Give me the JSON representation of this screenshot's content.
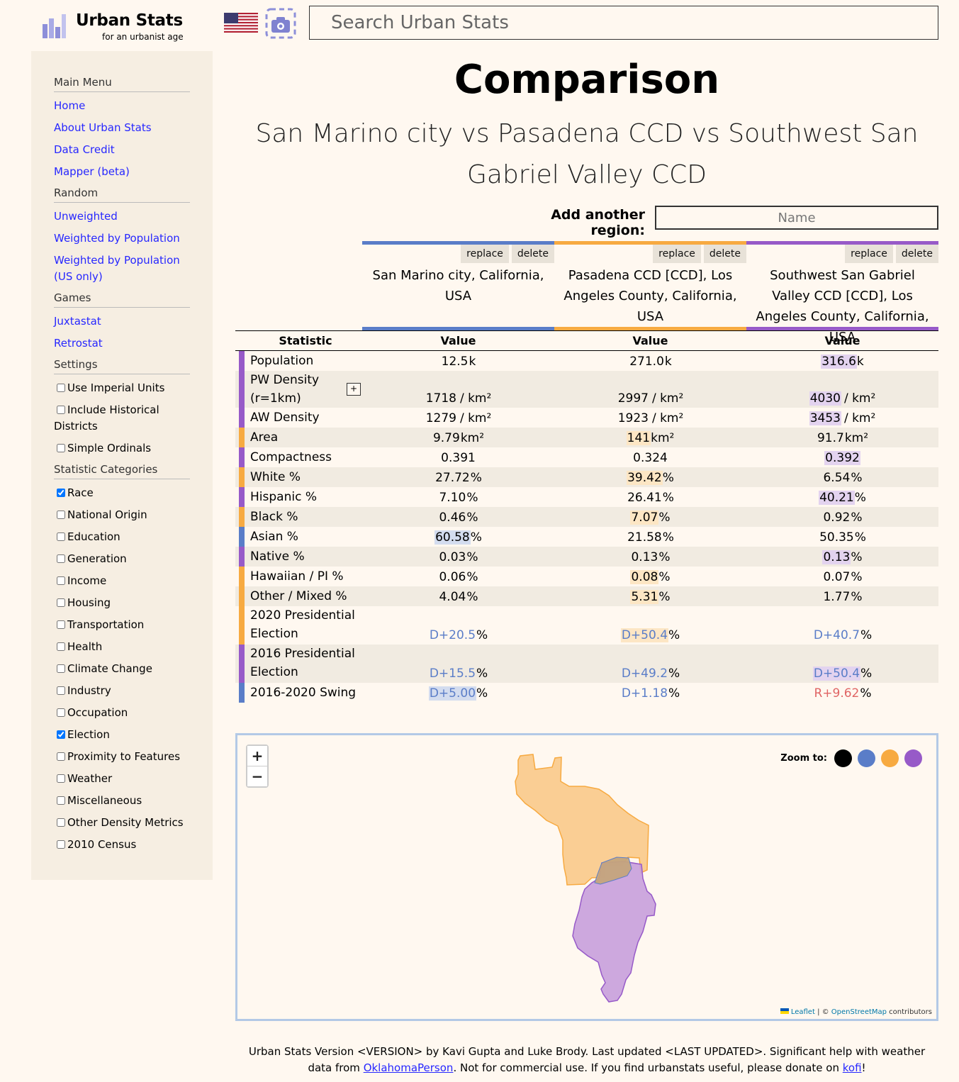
{
  "header": {
    "logo_title": "Urban Stats",
    "logo_subtitle": "for an urbanist age",
    "search_placeholder": "Search Urban Stats"
  },
  "sidebar": {
    "main_menu": "Main Menu",
    "main_links": [
      "Home",
      "About Urban Stats",
      "Data Credit",
      "Mapper (beta)"
    ],
    "random": "Random",
    "random_links": [
      "Unweighted",
      "Weighted by Population",
      "Weighted by Population (US only)"
    ],
    "games": "Games",
    "game_links": [
      "Juxtastat",
      "Retrostat"
    ],
    "settings": "Settings",
    "settings_items": [
      {
        "label": "Use Imperial Units",
        "checked": false
      },
      {
        "label": "Include Historical Districts",
        "checked": false
      },
      {
        "label": "Simple Ordinals",
        "checked": false
      }
    ],
    "categories": "Statistic Categories",
    "category_items": [
      {
        "label": "Race",
        "checked": true
      },
      {
        "label": "National Origin",
        "checked": false
      },
      {
        "label": "Education",
        "checked": false
      },
      {
        "label": "Generation",
        "checked": false
      },
      {
        "label": "Income",
        "checked": false
      },
      {
        "label": "Housing",
        "checked": false
      },
      {
        "label": "Transportation",
        "checked": false
      },
      {
        "label": "Health",
        "checked": false
      },
      {
        "label": "Climate Change",
        "checked": false
      },
      {
        "label": "Industry",
        "checked": false
      },
      {
        "label": "Occupation",
        "checked": false
      },
      {
        "label": "Election",
        "checked": true
      },
      {
        "label": "Proximity to Features",
        "checked": false
      },
      {
        "label": "Weather",
        "checked": false
      },
      {
        "label": "Miscellaneous",
        "checked": false
      },
      {
        "label": "Other Density Metrics",
        "checked": false
      },
      {
        "label": "2010 Census",
        "checked": false
      }
    ]
  },
  "main": {
    "title": "Comparison",
    "subtitle": "San Marino city vs Pasadena CCD vs Southwest San Gabriel Valley CCD",
    "add_region_label": "Add another region:",
    "add_region_placeholder": "Name",
    "replace_label": "replace",
    "delete_label": "delete",
    "regions": [
      {
        "name": "San Marino city, California, USA",
        "color": "#5a7dc8",
        "highlight": "#d3dcef"
      },
      {
        "name": "Pasadena CCD [CCD], Los Angeles County, California, USA",
        "color": "#f7aa41",
        "highlight": "#fde6c4"
      },
      {
        "name": "Southwest San Gabriel Valley CCD [CCD], Los Angeles County, California, USA",
        "color": "#975ac8",
        "highlight": "#e3d3ef"
      }
    ],
    "statistic_header": "Statistic",
    "value_header": "Value",
    "rows": [
      {
        "label": "Population",
        "stripe": 2,
        "values": [
          {
            "v": "12.5",
            "u": "k"
          },
          {
            "v": "271.0",
            "u": "k"
          },
          {
            "v": "316.6",
            "u": "k",
            "hl": true
          }
        ]
      },
      {
        "label": "PW Density (r=1km)",
        "stripe": 2,
        "expand": "+",
        "values": [
          {
            "v": "1718",
            "u": "/ km²"
          },
          {
            "v": "2997",
            "u": "/ km²"
          },
          {
            "v": "4030",
            "u": "/ km²",
            "hl": true
          }
        ]
      },
      {
        "label": "AW Density",
        "stripe": 2,
        "values": [
          {
            "v": "1279",
            "u": "/ km²"
          },
          {
            "v": "1923",
            "u": "/ km²"
          },
          {
            "v": "3453",
            "u": "/ km²",
            "hl": true
          }
        ]
      },
      {
        "label": "Area",
        "stripe": 1,
        "values": [
          {
            "v": "9.79",
            "u": "km²"
          },
          {
            "v": "141",
            "u": "km²",
            "hl": true
          },
          {
            "v": "91.7",
            "u": "km²"
          }
        ]
      },
      {
        "label": "Compactness",
        "stripe": 2,
        "values": [
          {
            "v": "0.391",
            "u": ""
          },
          {
            "v": "0.324",
            "u": ""
          },
          {
            "v": "0.392",
            "u": "",
            "hl": true
          }
        ]
      },
      {
        "label": "White %",
        "stripe": 1,
        "values": [
          {
            "v": "27.72",
            "u": "%"
          },
          {
            "v": "39.42",
            "u": "%",
            "hl": true
          },
          {
            "v": "6.54",
            "u": "%"
          }
        ]
      },
      {
        "label": "Hispanic %",
        "stripe": 2,
        "values": [
          {
            "v": "7.10",
            "u": "%"
          },
          {
            "v": "26.41",
            "u": "%"
          },
          {
            "v": "40.21",
            "u": "%",
            "hl": true
          }
        ]
      },
      {
        "label": "Black %",
        "stripe": 1,
        "values": [
          {
            "v": "0.46",
            "u": "%"
          },
          {
            "v": "7.07",
            "u": "%",
            "hl": true
          },
          {
            "v": "0.92",
            "u": "%"
          }
        ]
      },
      {
        "label": "Asian %",
        "stripe": 0,
        "values": [
          {
            "v": "60.58",
            "u": "%",
            "hl": true
          },
          {
            "v": "21.58",
            "u": "%"
          },
          {
            "v": "50.35",
            "u": "%"
          }
        ]
      },
      {
        "label": "Native %",
        "stripe": 2,
        "values": [
          {
            "v": "0.03",
            "u": "%"
          },
          {
            "v": "0.13",
            "u": "%"
          },
          {
            "v": "0.13",
            "u": "%",
            "hl": true
          }
        ]
      },
      {
        "label": "Hawaiian / PI %",
        "stripe": 1,
        "values": [
          {
            "v": "0.06",
            "u": "%"
          },
          {
            "v": "0.08",
            "u": "%",
            "hl": true
          },
          {
            "v": "0.07",
            "u": "%"
          }
        ]
      },
      {
        "label": "Other / Mixed %",
        "stripe": 1,
        "values": [
          {
            "v": "4.04",
            "u": "%"
          },
          {
            "v": "5.31",
            "u": "%",
            "hl": true
          },
          {
            "v": "1.77",
            "u": "%"
          }
        ]
      },
      {
        "label": "2020 Presidential Election",
        "stripe": 1,
        "values": [
          {
            "v": "D+20.5",
            "u": "%",
            "party": "d"
          },
          {
            "v": "D+50.4",
            "u": "%",
            "party": "d",
            "hl": true
          },
          {
            "v": "D+40.7",
            "u": "%",
            "party": "d"
          }
        ]
      },
      {
        "label": "2016 Presidential Election",
        "stripe": 2,
        "values": [
          {
            "v": "D+15.5",
            "u": "%",
            "party": "d"
          },
          {
            "v": "D+49.2",
            "u": "%",
            "party": "d"
          },
          {
            "v": "D+50.4",
            "u": "%",
            "party": "d",
            "hl": true
          }
        ]
      },
      {
        "label": "2016-2020 Swing",
        "stripe": 0,
        "values": [
          {
            "v": "D+5.00",
            "u": "%",
            "party": "d",
            "hl": true
          },
          {
            "v": "D+1.18",
            "u": "%",
            "party": "d"
          },
          {
            "v": "R+9.62",
            "u": "%",
            "party": "r"
          }
        ]
      }
    ]
  },
  "map": {
    "zoom_in": "+",
    "zoom_out": "−",
    "zoom_to_label": "Zoom to:",
    "zoom_colors": [
      "#000000",
      "#5a7dc8",
      "#f7aa41",
      "#975ac8"
    ],
    "attribution_leaflet": "Leaflet",
    "attribution_sep": " | © ",
    "attribution_osm": "OpenStreetMap",
    "attribution_tail": " contributors"
  },
  "footer": {
    "text1": "Urban Stats Version <VERSION> by Kavi Gupta and Luke Brody. Last updated <LAST UPDATED>. Significant help with weather data from ",
    "link1": "OklahomaPerson",
    "text2": ". Not for commercial use. If you find urbanstats useful, please donate on ",
    "link2": "kofi",
    "text3": "!"
  }
}
